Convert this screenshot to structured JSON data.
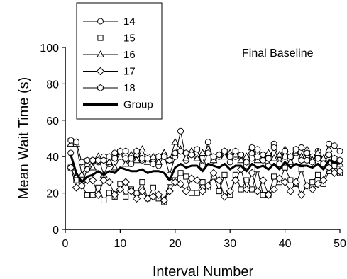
{
  "chart_data": {
    "type": "line",
    "annotation": "Final Baseline",
    "xlabel": "Interval Number",
    "ylabel": "Mean Wait Time (s)",
    "xlim": [
      0,
      50
    ],
    "ylim": [
      0,
      100
    ],
    "xticks": [
      "0",
      "10",
      "20",
      "30",
      "40",
      "50"
    ],
    "yticks": [
      "0",
      "20",
      "40",
      "60",
      "80",
      "100"
    ],
    "grid": false,
    "legend_position": "top-left",
    "x": [
      1,
      2,
      3,
      4,
      5,
      6,
      7,
      8,
      9,
      10,
      11,
      12,
      13,
      14,
      15,
      16,
      17,
      18,
      19,
      20,
      21,
      22,
      23,
      24,
      25,
      26,
      27,
      28,
      29,
      30,
      31,
      32,
      33,
      34,
      35,
      36,
      37,
      38,
      39,
      40,
      41,
      42,
      43,
      44,
      45,
      46,
      47,
      48,
      49,
      50
    ],
    "series": [
      {
        "name": "14",
        "marker": "circle",
        "line_width": 1,
        "values": [
          42,
          28,
          25,
          33,
          38,
          37,
          40,
          36,
          42,
          40,
          39,
          36,
          41,
          38,
          40,
          37,
          35,
          41,
          30,
          40,
          54,
          38,
          41,
          40,
          36,
          48,
          38,
          40,
          42,
          37,
          40,
          41,
          35,
          39,
          44,
          38,
          35,
          47,
          38,
          40,
          36,
          42,
          45,
          38,
          40,
          43,
          38,
          47,
          46,
          43
        ]
      },
      {
        "name": "15",
        "marker": "square",
        "line_width": 1,
        "values": [
          34,
          27,
          24,
          19,
          19,
          23,
          16,
          20,
          18,
          25,
          18,
          22,
          20,
          26,
          17,
          23,
          17,
          15,
          26,
          27,
          31,
          29,
          20,
          20,
          26,
          23,
          29,
          21,
          30,
          19,
          30,
          22,
          27,
          22,
          33,
          19,
          19,
          29,
          26,
          34,
          27,
          25,
          33,
          23,
          26,
          30,
          25,
          32,
          35,
          31
        ]
      },
      {
        "name": "16",
        "marker": "triangle",
        "line_width": 1,
        "values": [
          47,
          47,
          30,
          36,
          34,
          40,
          30,
          37,
          34,
          40,
          36,
          41,
          38,
          44,
          37,
          40,
          37,
          42,
          38,
          48,
          44,
          39,
          43,
          39,
          42,
          44,
          38,
          41,
          40,
          42,
          41,
          38,
          40,
          45,
          38,
          41,
          42,
          39,
          41,
          44,
          37,
          43,
          40,
          44,
          38,
          42,
          39,
          44,
          38,
          36
        ]
      },
      {
        "name": "17",
        "marker": "diamond",
        "line_width": 1,
        "values": [
          34,
          23,
          24,
          27,
          27,
          19,
          27,
          26,
          19,
          22,
          26,
          21,
          17,
          21,
          17,
          18,
          19,
          16,
          21,
          26,
          25,
          21,
          28,
          27,
          21,
          24,
          31,
          27,
          18,
          21,
          27,
          33,
          22,
          31,
          21,
          27,
          19,
          22,
          28,
          26,
          21,
          26,
          19,
          24,
          22,
          25,
          27,
          34,
          31,
          32
        ]
      },
      {
        "name": "18",
        "marker": "hexagon",
        "line_width": 1,
        "values": [
          49,
          48,
          37,
          38,
          38,
          38,
          38,
          40,
          39,
          43,
          43,
          39,
          43,
          39,
          39,
          36,
          40,
          40,
          38,
          42,
          43,
          42,
          41,
          44,
          35,
          42,
          40,
          41,
          43,
          40,
          43,
          41,
          37,
          45,
          40,
          41,
          39,
          45,
          36,
          43,
          40,
          44,
          38,
          42,
          37,
          39,
          36,
          41,
          39,
          38
        ]
      },
      {
        "name": "Group",
        "marker": "none",
        "line_width": 3,
        "values": [
          41,
          31,
          26,
          29,
          30,
          32,
          30,
          32,
          31,
          34,
          33,
          32,
          32,
          33,
          31,
          32,
          32,
          31,
          27,
          34,
          36,
          34,
          35,
          35,
          32,
          36,
          35,
          34,
          36,
          33,
          35,
          35,
          32,
          36,
          34,
          35,
          33,
          36,
          33,
          37,
          34,
          36,
          35,
          35,
          34,
          36,
          33,
          38,
          37,
          36
        ]
      }
    ]
  }
}
